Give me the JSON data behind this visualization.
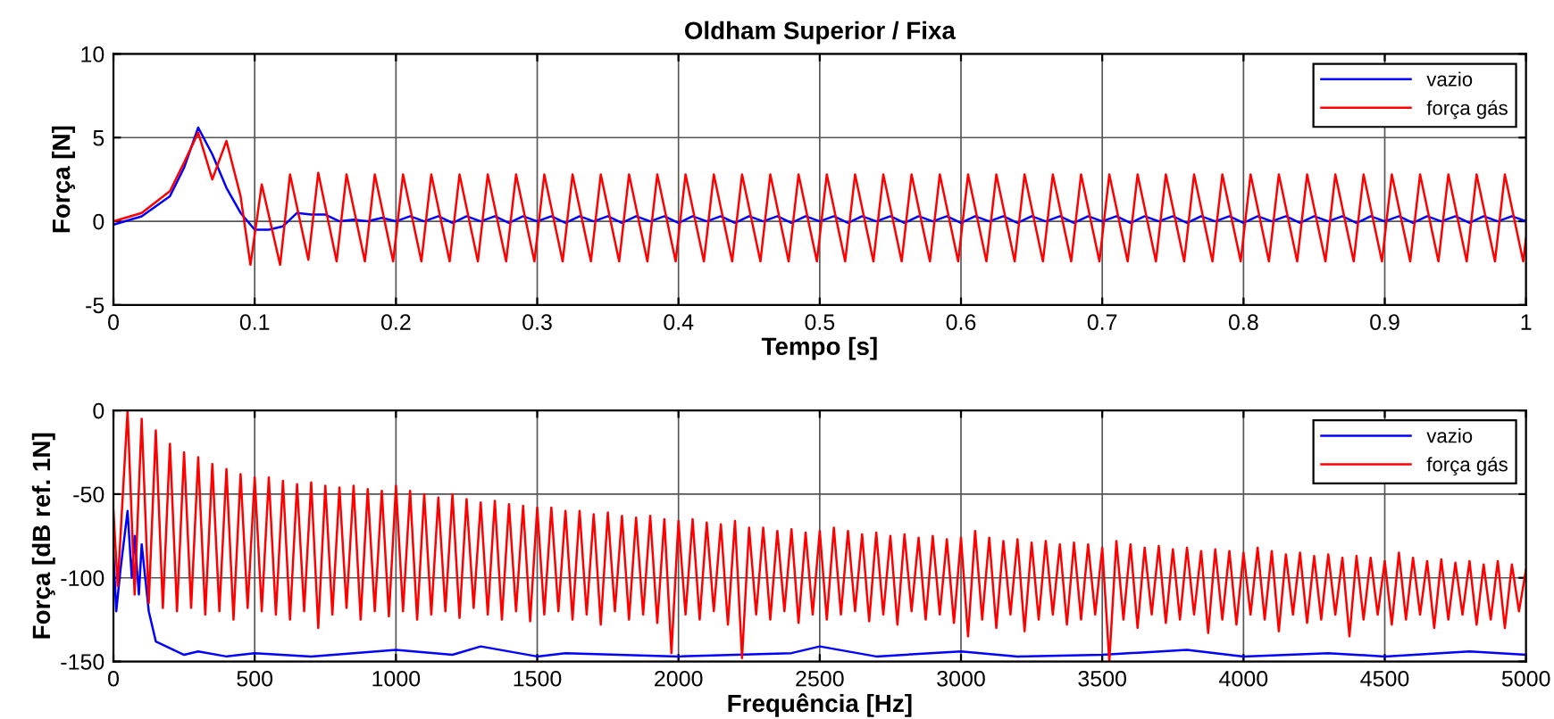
{
  "chart_data": [
    {
      "type": "line",
      "title": "Oldham Superior / Fixa",
      "xlabel": "Tempo [s]",
      "ylabel": "Força [N]",
      "xlim": [
        0,
        1
      ],
      "xticks": [
        0,
        0.1,
        0.2,
        0.3,
        0.4,
        0.5,
        0.6,
        0.7,
        0.8,
        0.9,
        1
      ],
      "ylim": [
        -5,
        10
      ],
      "yticks": [
        -5,
        0,
        5,
        10
      ],
      "grid": true,
      "legend": "top right",
      "series": [
        {
          "name": "vazio",
          "color": "#0000ff",
          "x": [
            0,
            0.02,
            0.04,
            0.05,
            0.06,
            0.07,
            0.08,
            0.09,
            0.1,
            0.11,
            0.12,
            0.13,
            0.14,
            0.15,
            0.16,
            0.17,
            0.18,
            0.19,
            0.2,
            0.21,
            0.22,
            0.23,
            0.24,
            0.25,
            0.26,
            0.27,
            0.28,
            0.29,
            0.3,
            0.31,
            0.32,
            0.33,
            0.34,
            0.35,
            0.36,
            0.37,
            0.38,
            0.39,
            0.4,
            0.41,
            0.42,
            0.43,
            0.44,
            0.45,
            0.46,
            0.47,
            0.48,
            0.49,
            0.5,
            0.51,
            0.52,
            0.53,
            0.54,
            0.55,
            0.56,
            0.57,
            0.58,
            0.59,
            0.6,
            0.61,
            0.62,
            0.63,
            0.64,
            0.65,
            0.66,
            0.67,
            0.68,
            0.69,
            0.7,
            0.71,
            0.72,
            0.73,
            0.74,
            0.75,
            0.76,
            0.77,
            0.78,
            0.79,
            0.8,
            0.81,
            0.82,
            0.83,
            0.84,
            0.85,
            0.86,
            0.87,
            0.88,
            0.89,
            0.9,
            0.91,
            0.92,
            0.93,
            0.94,
            0.95,
            0.96,
            0.97,
            0.98,
            0.99,
            1.0
          ],
          "values": [
            -0.2,
            0.3,
            1.5,
            3.2,
            5.6,
            4.0,
            2.0,
            0.5,
            -0.5,
            -0.5,
            -0.3,
            0.5,
            0.4,
            0.4,
            0,
            0.1,
            0,
            0.2,
            0,
            0.3,
            0,
            0.3,
            -0.1,
            0.3,
            0,
            0.3,
            -0.1,
            0.3,
            0,
            0.3,
            -0.1,
            0.3,
            0,
            0.3,
            -0.1,
            0.3,
            0,
            0.3,
            -0.1,
            0.3,
            0,
            0.3,
            -0.1,
            0.3,
            0,
            0.3,
            -0.1,
            0.3,
            0,
            0.3,
            -0.1,
            0.3,
            0,
            0.3,
            -0.1,
            0.3,
            0,
            0.3,
            -0.1,
            0.3,
            0,
            0.3,
            -0.1,
            0.3,
            0,
            0.3,
            -0.1,
            0.3,
            0,
            0.3,
            -0.1,
            0.3,
            0,
            0.3,
            -0.1,
            0.3,
            0,
            0.3,
            -0.1,
            0.3,
            0,
            0.3,
            -0.1,
            0.3,
            0,
            0.3,
            -0.1,
            0.3,
            0,
            0.3,
            -0.1,
            0.3,
            0,
            0.3,
            -0.1,
            0.3,
            0,
            0.3,
            0
          ]
        },
        {
          "name": "força gás",
          "color": "#ff0000",
          "x": [
            0,
            0.02,
            0.04,
            0.05,
            0.06,
            0.07,
            0.08,
            0.09,
            0.097,
            0.105,
            0.118,
            0.125,
            0.138,
            0.145,
            0.158,
            0.165,
            0.178,
            0.185,
            0.198,
            0.205,
            0.218,
            0.225,
            0.238,
            0.245,
            0.258,
            0.265,
            0.278,
            0.285,
            0.298,
            0.305,
            0.318,
            0.325,
            0.338,
            0.345,
            0.358,
            0.365,
            0.378,
            0.385,
            0.398,
            0.405,
            0.418,
            0.425,
            0.438,
            0.445,
            0.458,
            0.465,
            0.478,
            0.485,
            0.498,
            0.505,
            0.518,
            0.525,
            0.538,
            0.545,
            0.558,
            0.565,
            0.578,
            0.585,
            0.598,
            0.605,
            0.618,
            0.625,
            0.638,
            0.645,
            0.658,
            0.665,
            0.678,
            0.685,
            0.698,
            0.705,
            0.718,
            0.725,
            0.738,
            0.745,
            0.758,
            0.765,
            0.778,
            0.785,
            0.798,
            0.805,
            0.818,
            0.825,
            0.838,
            0.845,
            0.858,
            0.865,
            0.878,
            0.885,
            0.898,
            0.905,
            0.918,
            0.925,
            0.938,
            0.945,
            0.958,
            0.965,
            0.978,
            0.985,
            0.998,
            1.0
          ],
          "values": [
            0,
            0.5,
            1.8,
            3.5,
            5.3,
            2.5,
            4.8,
            1.5,
            -2.6,
            2.2,
            -2.6,
            2.8,
            -2.3,
            2.9,
            -2.4,
            2.8,
            -2.4,
            2.8,
            -2.4,
            2.8,
            -2.4,
            2.8,
            -2.4,
            2.8,
            -2.4,
            2.8,
            -2.4,
            2.8,
            -2.4,
            2.8,
            -2.4,
            2.8,
            -2.4,
            2.8,
            -2.4,
            2.8,
            -2.4,
            2.8,
            -2.4,
            2.8,
            -2.4,
            2.8,
            -2.4,
            2.8,
            -2.4,
            2.8,
            -2.4,
            2.8,
            -2.4,
            2.8,
            -2.4,
            2.8,
            -2.4,
            2.8,
            -2.4,
            2.8,
            -2.4,
            2.8,
            -2.4,
            2.8,
            -2.4,
            2.8,
            -2.4,
            2.8,
            -2.4,
            2.8,
            -2.4,
            2.8,
            -2.4,
            2.8,
            -2.4,
            2.8,
            -2.4,
            2.8,
            -2.4,
            2.8,
            -2.4,
            2.8,
            -2.4,
            2.8,
            -2.4,
            2.8,
            -2.4,
            2.8,
            -2.4,
            2.8,
            -2.4,
            2.8,
            -2.4,
            2.8,
            -2.4,
            2.8,
            -2.4,
            2.8,
            -2.4,
            2.8,
            -2.4,
            2.8,
            -2.4,
            -1.0
          ]
        }
      ]
    },
    {
      "type": "line",
      "xlabel": "Frequência [Hz]",
      "ylabel": "Força [dB ref. 1N]",
      "xlim": [
        0,
        5000
      ],
      "xticks": [
        0,
        500,
        1000,
        1500,
        2000,
        2500,
        3000,
        3500,
        4000,
        4500,
        5000
      ],
      "ylim": [
        -150,
        0
      ],
      "yticks": [
        -150,
        -100,
        -50,
        0
      ],
      "grid": true,
      "legend": "top right",
      "series": [
        {
          "name": "vazio",
          "color": "#0000ff",
          "x": [
            0,
            10,
            25,
            50,
            65,
            75,
            90,
            100,
            125,
            150,
            200,
            250,
            300,
            400,
            500,
            700,
            1000,
            1200,
            1300,
            1500,
            1600,
            2000,
            2400,
            2500,
            2700,
            3000,
            3200,
            3500,
            3800,
            4000,
            4300,
            4500,
            4800,
            5000
          ],
          "values": [
            -85,
            -120,
            -95,
            -60,
            -100,
            -75,
            -110,
            -80,
            -120,
            -138,
            -142,
            -146,
            -144,
            -147,
            -145,
            -147,
            -143,
            -146,
            -141,
            -147,
            -145,
            -147,
            -145,
            -141,
            -147,
            -144,
            -147,
            -146,
            -143,
            -147,
            -145,
            -147,
            -144,
            -146
          ]
        },
        {
          "name": "força gás",
          "color": "#ff0000",
          "x": [
            0,
            15,
            50,
            75,
            100,
            125,
            150,
            175,
            200,
            225,
            250,
            275,
            300,
            325,
            350,
            375,
            400,
            425,
            450,
            475,
            500,
            525,
            550,
            575,
            600,
            625,
            650,
            675,
            700,
            725,
            750,
            775,
            800,
            825,
            850,
            875,
            900,
            925,
            950,
            975,
            1000,
            1025,
            1050,
            1075,
            1100,
            1125,
            1150,
            1175,
            1200,
            1225,
            1250,
            1275,
            1300,
            1325,
            1350,
            1375,
            1400,
            1425,
            1450,
            1475,
            1500,
            1525,
            1550,
            1575,
            1600,
            1625,
            1650,
            1675,
            1700,
            1725,
            1750,
            1775,
            1800,
            1825,
            1850,
            1875,
            1900,
            1925,
            1950,
            1975,
            2000,
            2025,
            2050,
            2075,
            2100,
            2125,
            2150,
            2175,
            2200,
            2225,
            2250,
            2275,
            2300,
            2325,
            2350,
            2375,
            2400,
            2425,
            2450,
            2475,
            2500,
            2525,
            2550,
            2575,
            2600,
            2625,
            2650,
            2675,
            2700,
            2725,
            2750,
            2775,
            2800,
            2825,
            2850,
            2875,
            2900,
            2925,
            2950,
            2975,
            3000,
            3025,
            3050,
            3075,
            3100,
            3125,
            3150,
            3175,
            3200,
            3225,
            3250,
            3275,
            3300,
            3325,
            3350,
            3375,
            3400,
            3425,
            3450,
            3475,
            3500,
            3525,
            3550,
            3575,
            3600,
            3625,
            3650,
            3675,
            3700,
            3725,
            3750,
            3775,
            3800,
            3825,
            3850,
            3875,
            3900,
            3925,
            3950,
            3975,
            4000,
            4025,
            4050,
            4075,
            4100,
            4125,
            4150,
            4175,
            4200,
            4225,
            4250,
            4275,
            4300,
            4325,
            4350,
            4375,
            4400,
            4425,
            4450,
            4475,
            4500,
            4525,
            4550,
            4575,
            4600,
            4625,
            4650,
            4675,
            4700,
            4725,
            4750,
            4775,
            4800,
            4825,
            4850,
            4875,
            4900,
            4925,
            4950,
            4975,
            5000
          ],
          "values": [
            -60,
            -105,
            0,
            -110,
            -5,
            -115,
            -12,
            -118,
            -20,
            -120,
            -25,
            -118,
            -28,
            -122,
            -32,
            -120,
            -35,
            -125,
            -38,
            -118,
            -40,
            -120,
            -40,
            -122,
            -42,
            -125,
            -44,
            -120,
            -43,
            -130,
            -45,
            -122,
            -46,
            -118,
            -45,
            -125,
            -47,
            -120,
            -48,
            -123,
            -45,
            -120,
            -48,
            -125,
            -50,
            -122,
            -52,
            -120,
            -50,
            -124,
            -53,
            -118,
            -55,
            -122,
            -54,
            -125,
            -56,
            -120,
            -57,
            -126,
            -58,
            -122,
            -58,
            -120,
            -60,
            -125,
            -60,
            -122,
            -62,
            -128,
            -61,
            -120,
            -63,
            -125,
            -64,
            -122,
            -63,
            -127,
            -65,
            -145,
            -66,
            -122,
            -65,
            -125,
            -67,
            -120,
            -68,
            -128,
            -66,
            -148,
            -70,
            -122,
            -70,
            -125,
            -72,
            -120,
            -71,
            -127,
            -73,
            -122,
            -72,
            -125,
            -70,
            -122,
            -72,
            -120,
            -74,
            -126,
            -73,
            -122,
            -75,
            -128,
            -74,
            -120,
            -76,
            -125,
            -75,
            -122,
            -77,
            -127,
            -76,
            -135,
            -72,
            -125,
            -76,
            -130,
            -78,
            -122,
            -77,
            -132,
            -79,
            -125,
            -78,
            -122,
            -80,
            -128,
            -79,
            -125,
            -80,
            -122,
            -82,
            -150,
            -78,
            -125,
            -80,
            -130,
            -82,
            -122,
            -81,
            -127,
            -83,
            -125,
            -82,
            -122,
            -84,
            -133,
            -83,
            -125,
            -84,
            -128,
            -85,
            -122,
            -82,
            -125,
            -84,
            -132,
            -86,
            -122,
            -85,
            -127,
            -87,
            -125,
            -86,
            -122,
            -88,
            -135,
            -87,
            -125,
            -88,
            -122,
            -90,
            -128,
            -85,
            -125,
            -88,
            -122,
            -90,
            -130,
            -89,
            -125,
            -91,
            -122,
            -90,
            -128,
            -92,
            -125,
            -90,
            -130,
            -92,
            -120,
            -95
          ]
        }
      ]
    }
  ]
}
